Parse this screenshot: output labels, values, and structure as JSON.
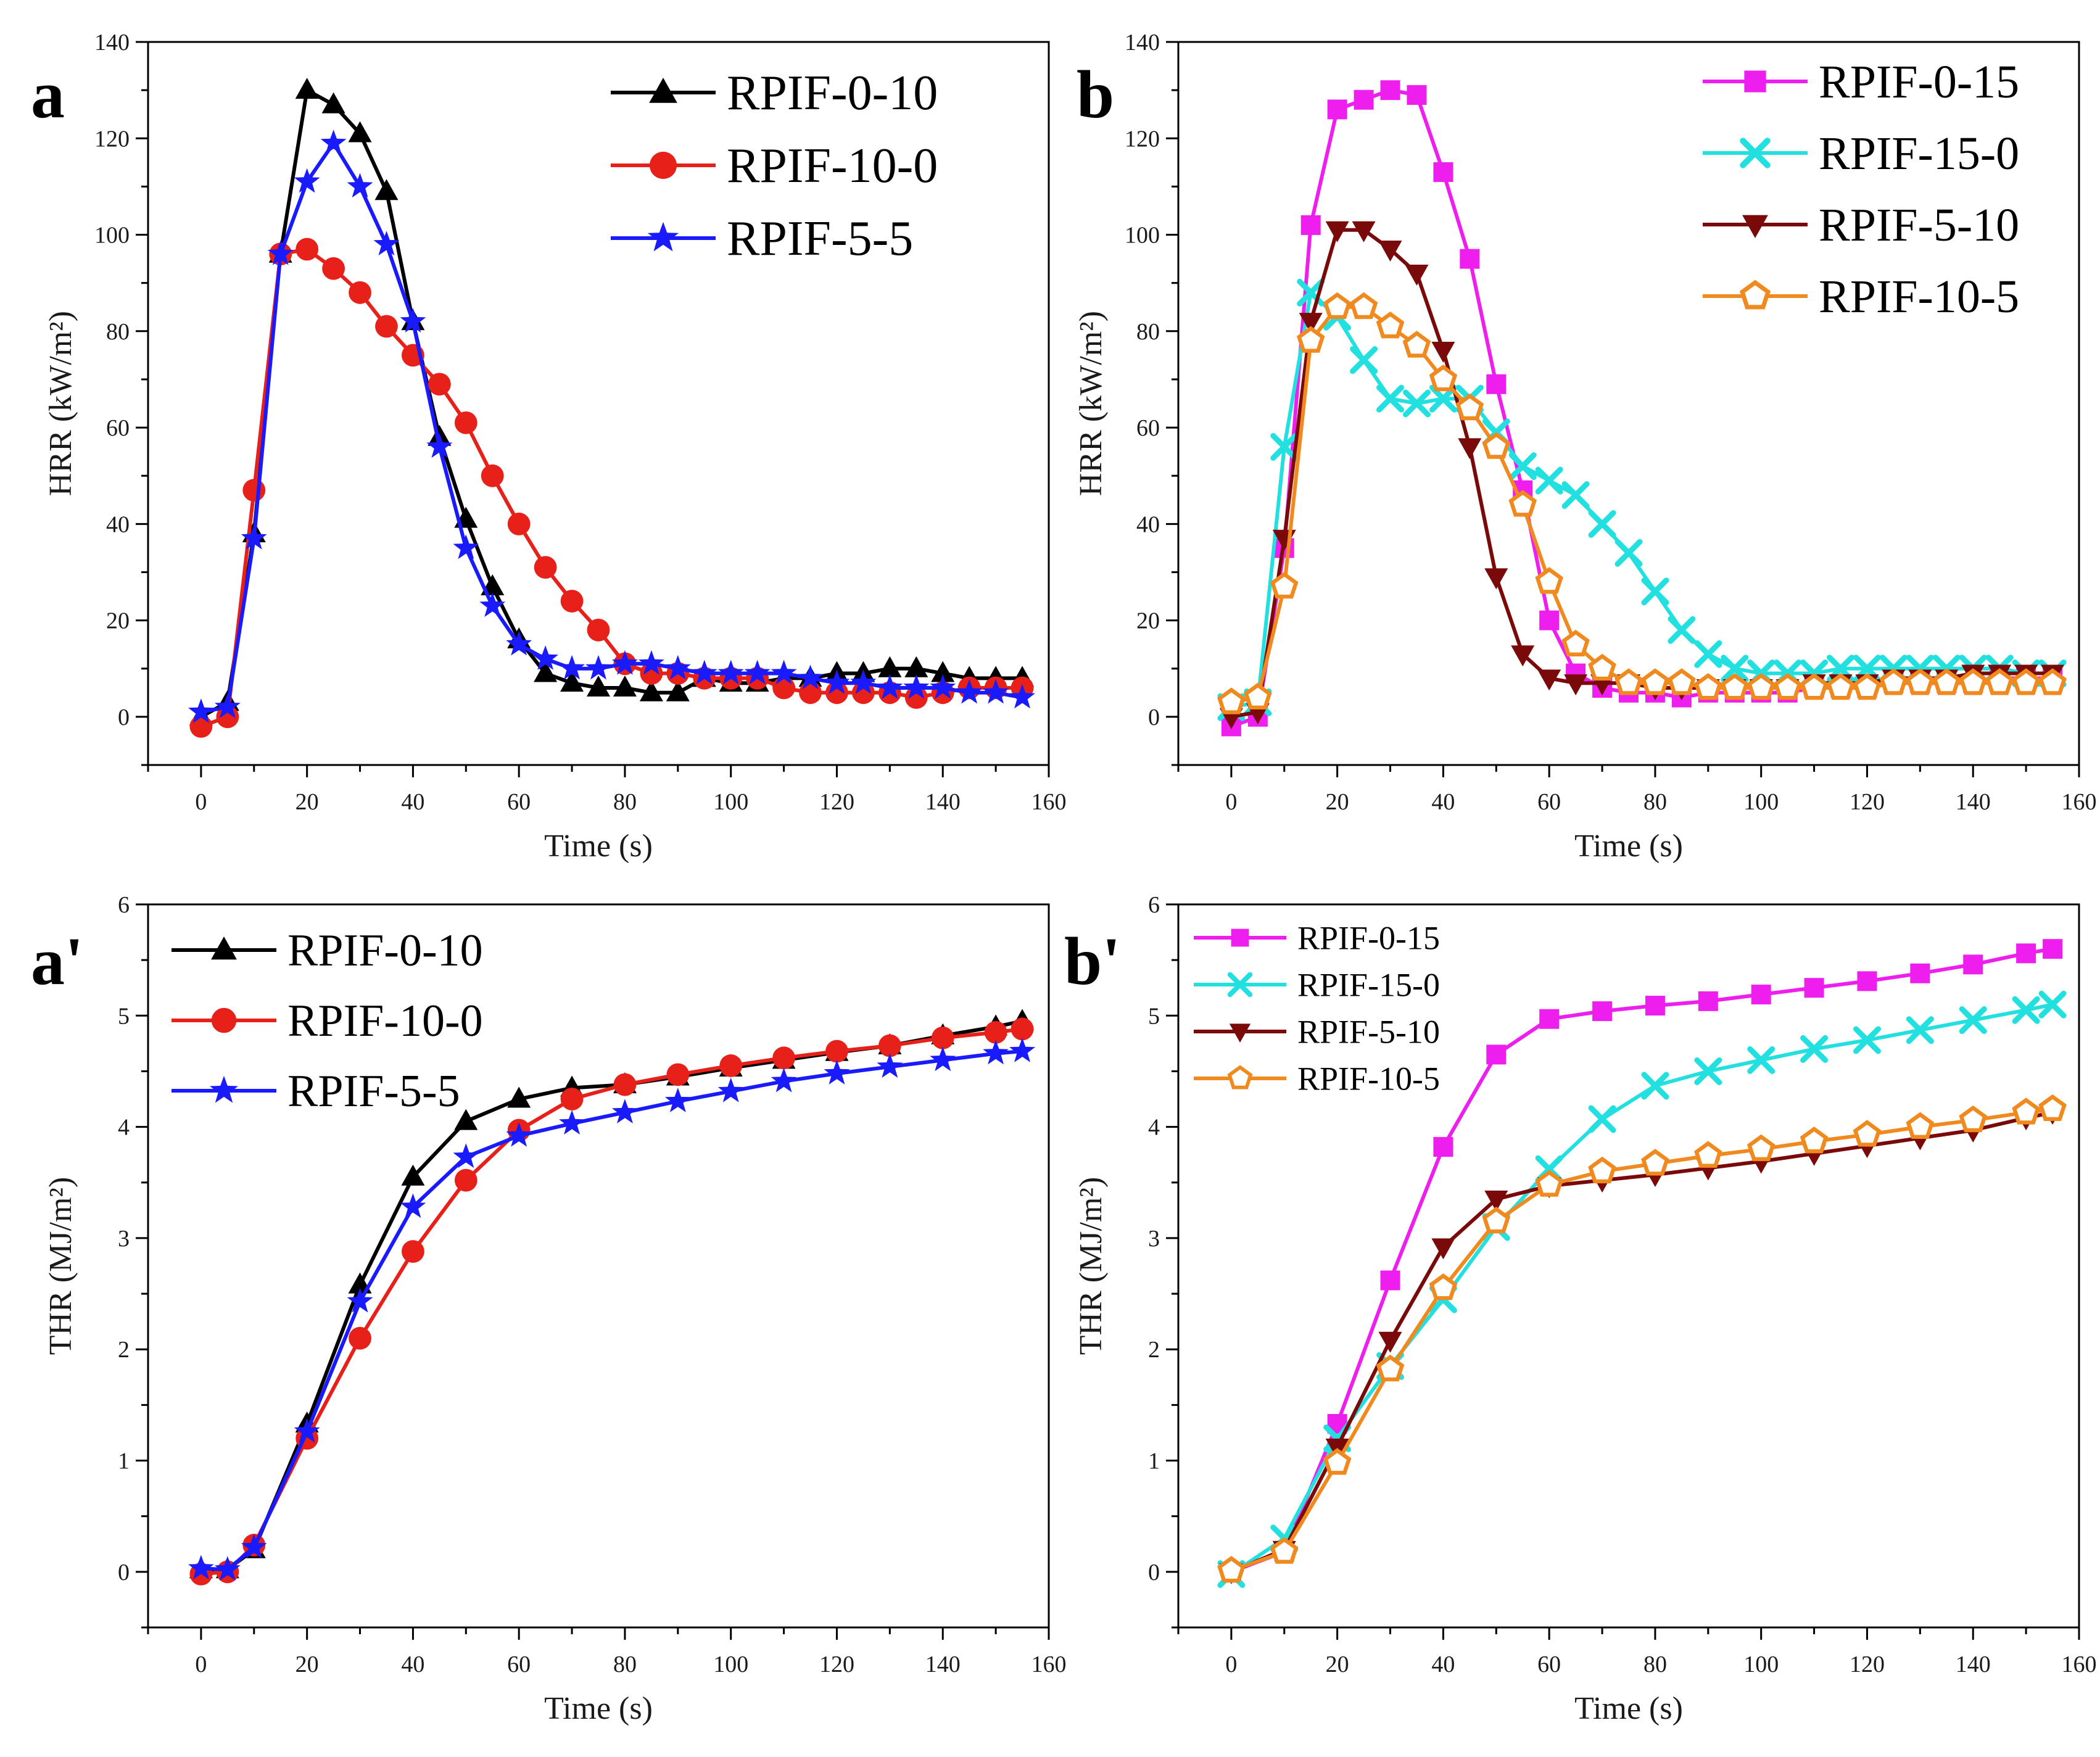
{
  "chart_data": [
    {
      "panel": "a",
      "type": "line",
      "xlabel": "Time (s)",
      "ylabel": "HRR (kW/m²)",
      "xlim": [
        -10,
        160
      ],
      "ylim": [
        -10,
        140
      ],
      "xticks": [
        "0",
        "20",
        "40",
        "60",
        "80",
        "100",
        "120",
        "140",
        "160"
      ],
      "yticks": [
        "0",
        "20",
        "40",
        "60",
        "80",
        "100",
        "120",
        "140"
      ],
      "legend_position": "top-right",
      "series": [
        {
          "name": "RPIF-0-10",
          "color": "#000000",
          "marker": "triangle",
          "x": [
            0,
            5,
            10,
            15,
            20,
            25,
            30,
            35,
            40,
            45,
            50,
            55,
            60,
            65,
            70,
            75,
            80,
            85,
            90,
            95,
            100,
            105,
            110,
            115,
            120,
            125,
            130,
            135,
            140,
            145,
            150,
            155
          ],
          "y": [
            0,
            3,
            38,
            96,
            130,
            127,
            121,
            109,
            82,
            58,
            41,
            27,
            16,
            9,
            7,
            6,
            6,
            5,
            5,
            8,
            7,
            7,
            8,
            8,
            9,
            9,
            10,
            10,
            9,
            8,
            8,
            8
          ]
        },
        {
          "name": "RPIF-10-0",
          "color": "#e8201a",
          "marker": "circle",
          "x": [
            0,
            5,
            10,
            15,
            20,
            25,
            30,
            35,
            40,
            45,
            50,
            55,
            60,
            65,
            70,
            75,
            80,
            85,
            90,
            95,
            100,
            105,
            110,
            115,
            120,
            125,
            130,
            135,
            140,
            145,
            150,
            155
          ],
          "y": [
            -2,
            0,
            47,
            96,
            97,
            93,
            88,
            81,
            75,
            69,
            61,
            50,
            40,
            31,
            24,
            18,
            11,
            9,
            9,
            8,
            8,
            8,
            6,
            5,
            5,
            5,
            5,
            4,
            5,
            6,
            6,
            6
          ]
        },
        {
          "name": "RPIF-5-5",
          "color": "#1a1aff",
          "marker": "star",
          "x": [
            0,
            5,
            10,
            15,
            20,
            25,
            30,
            35,
            40,
            45,
            50,
            55,
            60,
            65,
            70,
            75,
            80,
            85,
            90,
            95,
            100,
            105,
            110,
            115,
            120,
            125,
            130,
            135,
            140,
            145,
            150,
            155
          ],
          "y": [
            1,
            2,
            37,
            96,
            111,
            119,
            110,
            98,
            82,
            56,
            35,
            23,
            15,
            12,
            10,
            10,
            11,
            11,
            10,
            9,
            9,
            9,
            9,
            8,
            7,
            7,
            6,
            6,
            6,
            5,
            5,
            4
          ]
        }
      ]
    },
    {
      "panel": "b",
      "type": "line",
      "xlabel": "Time (s)",
      "ylabel": "HRR (kW/m²)",
      "xlim": [
        -10,
        160
      ],
      "ylim": [
        -10,
        140
      ],
      "xticks": [
        "0",
        "20",
        "40",
        "60",
        "80",
        "100",
        "120",
        "140",
        "160"
      ],
      "yticks": [
        "0",
        "20",
        "40",
        "60",
        "80",
        "100",
        "120",
        "140"
      ],
      "legend_position": "top-right",
      "series": [
        {
          "name": "RPIF-0-15",
          "color": "#ee1fee",
          "marker": "square",
          "x": [
            0,
            5,
            10,
            15,
            20,
            25,
            30,
            35,
            40,
            45,
            50,
            55,
            60,
            65,
            70,
            75,
            80,
            85,
            90,
            95,
            100,
            105,
            110,
            115,
            120,
            125,
            130,
            135,
            140,
            145,
            150,
            155
          ],
          "y": [
            -2,
            0,
            35,
            102,
            126,
            128,
            130,
            129,
            113,
            95,
            69,
            47,
            20,
            9,
            6,
            5,
            5,
            4,
            5,
            5,
            5,
            5,
            6,
            6,
            6,
            7,
            7,
            7,
            7,
            8,
            8,
            8
          ]
        },
        {
          "name": "RPIF-15-0",
          "color": "#22e0e0",
          "marker": "x",
          "x": [
            0,
            5,
            10,
            15,
            20,
            25,
            30,
            35,
            40,
            45,
            50,
            55,
            60,
            65,
            70,
            75,
            80,
            85,
            90,
            95,
            100,
            105,
            110,
            115,
            120,
            125,
            130,
            135,
            140,
            145,
            150,
            155
          ],
          "y": [
            2,
            3,
            56,
            88,
            83,
            74,
            66,
            65,
            66,
            66,
            59,
            52,
            49,
            46,
            40,
            34,
            26,
            18,
            13,
            10,
            9,
            9,
            9,
            10,
            10,
            10,
            10,
            10,
            10,
            10,
            9,
            9
          ]
        },
        {
          "name": "RPIF-5-10",
          "color": "#7a0a0a",
          "marker": "triangle-down",
          "x": [
            0,
            5,
            10,
            15,
            20,
            25,
            30,
            35,
            40,
            45,
            50,
            55,
            60,
            65,
            70,
            75,
            80,
            85,
            90,
            95,
            100,
            105,
            110,
            115,
            120,
            125,
            130,
            135,
            140,
            145,
            150,
            155
          ],
          "y": [
            0,
            1,
            37,
            82,
            101,
            101,
            97,
            92,
            76,
            56,
            29,
            13,
            8,
            7,
            7,
            7,
            6,
            6,
            6,
            6,
            6,
            6,
            7,
            7,
            7,
            8,
            8,
            8,
            9,
            9,
            9,
            9
          ]
        },
        {
          "name": "RPIF-10-5",
          "color": "#f08a1e",
          "marker": "pentagon",
          "x": [
            0,
            5,
            10,
            15,
            20,
            25,
            30,
            35,
            40,
            45,
            50,
            55,
            60,
            65,
            70,
            75,
            80,
            85,
            90,
            95,
            100,
            105,
            110,
            115,
            120,
            125,
            130,
            135,
            140,
            145,
            150,
            155
          ],
          "y": [
            3,
            4,
            27,
            78,
            85,
            85,
            81,
            77,
            70,
            64,
            56,
            44,
            28,
            15,
            10,
            7,
            7,
            7,
            6,
            6,
            6,
            6,
            6,
            6,
            6,
            7,
            7,
            7,
            7,
            7,
            7,
            7
          ]
        }
      ]
    },
    {
      "panel": "a'",
      "type": "line",
      "xlabel": "Time (s)",
      "ylabel": "THR (MJ/m²)",
      "xlim": [
        -10,
        160
      ],
      "ylim": [
        -0.5,
        6
      ],
      "xticks": [
        "0",
        "20",
        "40",
        "60",
        "80",
        "100",
        "120",
        "140",
        "160"
      ],
      "yticks": [
        "0",
        "1",
        "2",
        "3",
        "4",
        "5",
        "6"
      ],
      "legend_position": "top-left",
      "series": [
        {
          "name": "RPIF-0-10",
          "color": "#000000",
          "marker": "triangle",
          "x": [
            0,
            5,
            10,
            20,
            30,
            40,
            50,
            60,
            70,
            80,
            90,
            100,
            110,
            120,
            130,
            140,
            150,
            155
          ],
          "y": [
            0.02,
            0.02,
            0.2,
            1.33,
            2.58,
            3.55,
            4.05,
            4.25,
            4.35,
            4.38,
            4.45,
            4.53,
            4.6,
            4.67,
            4.73,
            4.82,
            4.9,
            4.95
          ]
        },
        {
          "name": "RPIF-10-0",
          "color": "#e8201a",
          "marker": "circle",
          "x": [
            0,
            5,
            10,
            20,
            30,
            40,
            50,
            60,
            70,
            80,
            90,
            100,
            110,
            120,
            130,
            140,
            150,
            155
          ],
          "y": [
            -0.02,
            0.0,
            0.24,
            1.2,
            2.1,
            2.88,
            3.52,
            3.97,
            4.25,
            4.38,
            4.47,
            4.55,
            4.62,
            4.68,
            4.73,
            4.8,
            4.85,
            4.88
          ]
        },
        {
          "name": "RPIF-5-5",
          "color": "#1a1aff",
          "marker": "star",
          "x": [
            0,
            5,
            10,
            20,
            30,
            40,
            50,
            60,
            70,
            80,
            90,
            100,
            110,
            120,
            130,
            140,
            150,
            155
          ],
          "y": [
            0.03,
            0.02,
            0.22,
            1.26,
            2.43,
            3.28,
            3.73,
            3.92,
            4.03,
            4.13,
            4.23,
            4.32,
            4.41,
            4.48,
            4.54,
            4.6,
            4.66,
            4.68
          ]
        }
      ]
    },
    {
      "panel": "b'",
      "type": "line",
      "xlabel": "Time (s)",
      "ylabel": "THR (MJ/m²)",
      "xlim": [
        -10,
        160
      ],
      "ylim": [
        -0.5,
        6
      ],
      "xticks": [
        "0",
        "20",
        "40",
        "60",
        "80",
        "100",
        "120",
        "140",
        "160"
      ],
      "yticks": [
        "0",
        "1",
        "2",
        "3",
        "4",
        "5",
        "6"
      ],
      "legend_position": "top-left",
      "series": [
        {
          "name": "RPIF-0-15",
          "color": "#ee1fee",
          "marker": "square",
          "x": [
            0,
            10,
            20,
            30,
            40,
            50,
            60,
            70,
            80,
            90,
            100,
            110,
            120,
            130,
            140,
            150,
            155
          ],
          "y": [
            0.0,
            0.18,
            1.33,
            2.62,
            3.82,
            4.65,
            4.97,
            5.04,
            5.09,
            5.13,
            5.19,
            5.25,
            5.31,
            5.38,
            5.46,
            5.56,
            5.6
          ]
        },
        {
          "name": "RPIF-15-0",
          "color": "#22e0e0",
          "marker": "x",
          "x": [
            0,
            10,
            20,
            30,
            40,
            50,
            60,
            70,
            80,
            90,
            100,
            110,
            120,
            130,
            140,
            150,
            155
          ],
          "y": [
            -0.02,
            0.3,
            1.2,
            1.85,
            2.45,
            3.1,
            3.62,
            4.07,
            4.37,
            4.5,
            4.6,
            4.7,
            4.78,
            4.87,
            4.96,
            5.05,
            5.1
          ]
        },
        {
          "name": "RPIF-5-10",
          "color": "#7a0a0a",
          "marker": "triangle-down",
          "x": [
            0,
            10,
            20,
            30,
            40,
            50,
            60,
            70,
            80,
            90,
            100,
            110,
            120,
            130,
            140,
            150,
            155
          ],
          "y": [
            0.0,
            0.2,
            1.12,
            2.08,
            2.92,
            3.35,
            3.47,
            3.52,
            3.57,
            3.63,
            3.69,
            3.76,
            3.83,
            3.9,
            3.97,
            4.08,
            4.13
          ]
        },
        {
          "name": "RPIF-10-5",
          "color": "#f08a1e",
          "marker": "pentagon",
          "x": [
            0,
            10,
            20,
            30,
            40,
            50,
            60,
            70,
            80,
            90,
            100,
            110,
            120,
            130,
            140,
            150,
            155
          ],
          "y": [
            0.01,
            0.18,
            0.98,
            1.82,
            2.55,
            3.15,
            3.48,
            3.6,
            3.67,
            3.74,
            3.8,
            3.87,
            3.93,
            4.0,
            4.06,
            4.13,
            4.16
          ]
        }
      ]
    }
  ],
  "panel_labels": [
    "a",
    "b",
    "a'",
    "b'"
  ]
}
